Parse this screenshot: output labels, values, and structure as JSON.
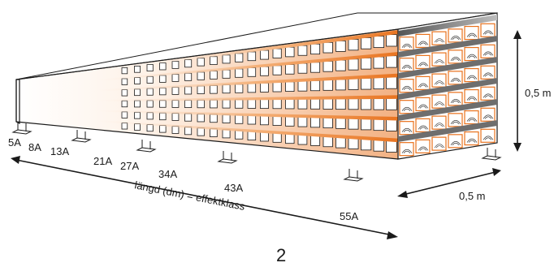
{
  "diagram": {
    "class_labels": [
      "5A",
      "8A",
      "13A",
      "21A",
      "27A",
      "34A",
      "43A",
      "55A"
    ],
    "length_label": "längd (dm) = effektklass",
    "height_label": "0,5 m",
    "depth_label": "0,5 m",
    "page_number": "2",
    "colors": {
      "accent": "#e8711c",
      "shadow": "#6e6e6e",
      "outline": "#1a1a1a"
    }
  }
}
